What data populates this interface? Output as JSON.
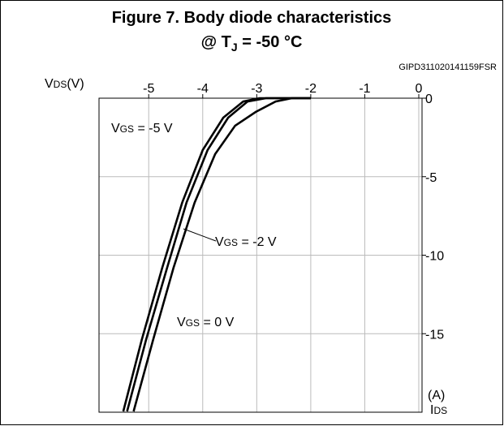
{
  "chart_data": {
    "type": "line",
    "title": "Figure 7. Body diode characteristics",
    "subtitle": {
      "main": "@ T",
      "sub": "J",
      "rest": " = -50 °C"
    },
    "code": "GIPD311020141159FSR",
    "xlabel": {
      "main": "V",
      "sub": "DS",
      "rest": "(V)"
    },
    "ylabel": {
      "unit": "(A)",
      "main": "I",
      "sub": "DS"
    },
    "xlim": [
      -5.92,
      0.06
    ],
    "ylim": [
      0,
      -20
    ],
    "xticks": [
      -5,
      -4,
      -3,
      -2,
      -1,
      0
    ],
    "yticks": [
      0,
      -5,
      -10,
      -15
    ],
    "grid": true,
    "series": [
      {
        "name": {
          "main": "V",
          "sub": "GS",
          "rest": " = -5 V"
        },
        "color": "#000000",
        "x": [
          -5.47,
          -5.13,
          -4.75,
          -4.38,
          -4.0,
          -3.62,
          -3.25,
          -2.95,
          -2.0
        ],
        "values": [
          -19.95,
          -15.4,
          -10.8,
          -6.65,
          -3.3,
          -1.24,
          -0.21,
          0,
          0
        ]
      },
      {
        "name": {
          "main": "V",
          "sub": "GS",
          "rest": " = -2 V"
        },
        "color": "#000000",
        "x": [
          -5.4,
          -5.05,
          -4.66,
          -4.3,
          -3.91,
          -3.53,
          -3.17,
          -2.83,
          -2.0
        ],
        "values": [
          -19.95,
          -15.4,
          -10.8,
          -6.65,
          -3.3,
          -1.24,
          -0.21,
          0,
          0
        ]
      },
      {
        "name": {
          "main": "V",
          "sub": "GS",
          "rest": " = 0 V"
        },
        "color": "#000000",
        "x": [
          -5.28,
          -4.92,
          -4.54,
          -4.15,
          -3.77,
          -3.4,
          -3.02,
          -2.65,
          -2.35,
          -2.0
        ],
        "values": [
          -19.95,
          -15.4,
          -10.8,
          -6.65,
          -3.56,
          -1.75,
          -0.88,
          -0.21,
          0,
          0
        ]
      }
    ]
  }
}
